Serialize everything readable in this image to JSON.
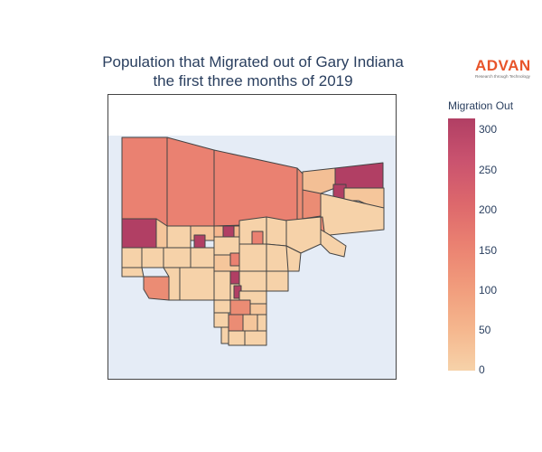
{
  "title": {
    "line1": "Population that Migrated out of Gary Indiana",
    "line2": "the first three months of 2019"
  },
  "logo": {
    "name": "ADVAN",
    "tagline": "Research through Technology"
  },
  "colorbar": {
    "title": "Migration Out",
    "ticks": [
      "300",
      "250",
      "200",
      "150",
      "100",
      "50",
      "0"
    ],
    "range": [
      0,
      320
    ],
    "colorscale": [
      "#f6d2a9",
      "#f5b78e",
      "#f19c7c",
      "#ea8171",
      "#dd686c",
      "#ca536f",
      "#b13f64"
    ]
  },
  "colors": {
    "ocean": "#e5ecf6",
    "border": "#444444",
    "title": "#2a3f5f",
    "brand": "#e8542a"
  }
}
